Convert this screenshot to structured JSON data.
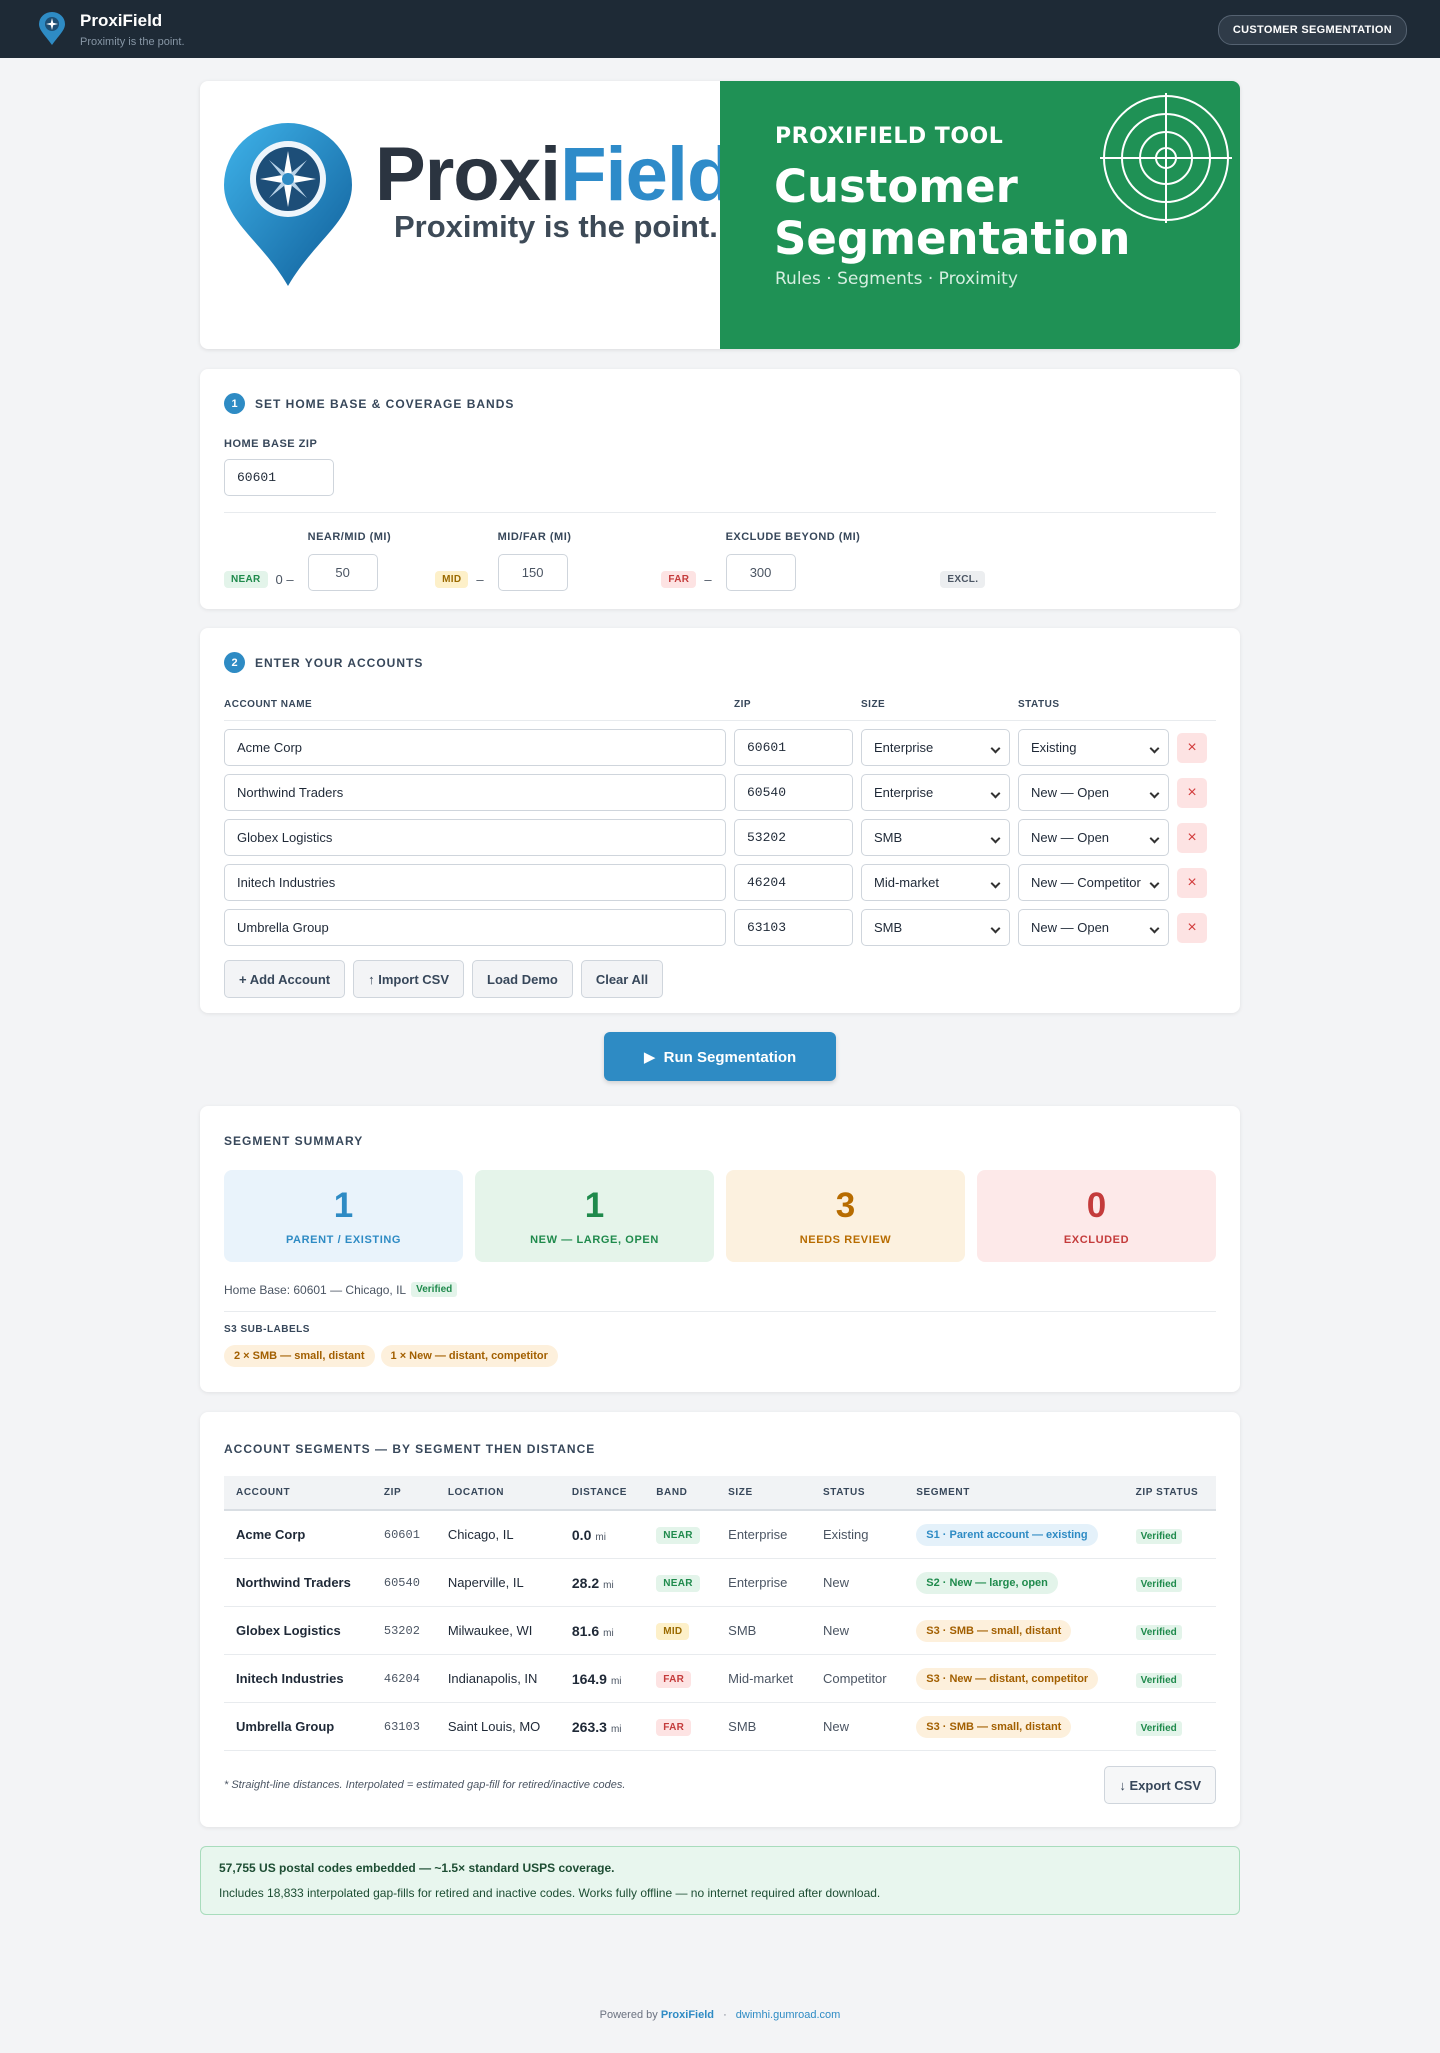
{
  "nav": {
    "brand": "ProxiField",
    "tagline": "Proximity is the point.",
    "button": "CUSTOMER SEGMENTATION"
  },
  "hero": {
    "logo_prefix": "Proxi",
    "logo_suffix": "Field",
    "logo_tagline": "Proximity is the point.",
    "eyebrow": "PROXIFIELD TOOL",
    "title_line1": "Customer",
    "title_line2": "Segmentation",
    "subtitle": "Rules · Segments · Proximity"
  },
  "step1": {
    "number": "1",
    "title": "SET HOME BASE & COVERAGE BANDS",
    "home_zip_label": "HOME BASE ZIP",
    "home_zip": "60601",
    "near_tag": "NEAR",
    "near_range": "0 –",
    "near_mid_label": "NEAR/MID (MI)",
    "near_mid": "50",
    "mid_tag": "MID",
    "mid_dash": "–",
    "mid_far_label": "MID/FAR (MI)",
    "mid_far": "150",
    "far_tag": "FAR",
    "far_dash": "–",
    "exclude_label": "EXCLUDE BEYOND (MI)",
    "exclude": "300",
    "excl_tag": "EXCL."
  },
  "step2": {
    "number": "2",
    "title": "ENTER YOUR ACCOUNTS",
    "columns": [
      "ACCOUNT NAME",
      "ZIP",
      "SIZE",
      "STATUS"
    ],
    "rows": [
      [
        "Acme Corp",
        "60601",
        "Enterprise",
        "Existing"
      ],
      [
        "Northwind Traders",
        "60540",
        "Enterprise",
        "New — Open"
      ],
      [
        "Globex Logistics",
        "53202",
        "SMB",
        "New — Open"
      ],
      [
        "Initech Industries",
        "46204",
        "Mid-market",
        "New — Competitor"
      ],
      [
        "Umbrella Group",
        "63103",
        "SMB",
        "New — Open"
      ]
    ],
    "remove": "×",
    "buttons": [
      "+ Add Account",
      "↑ Import CSV",
      "Load Demo",
      "Clear All"
    ]
  },
  "run_button": "▶  Run Segmentation",
  "summary": {
    "title": "SEGMENT SUMMARY",
    "cards": [
      {
        "value": "1",
        "label": "PARENT / EXISTING"
      },
      {
        "value": "1",
        "label": "NEW — LARGE, OPEN"
      },
      {
        "value": "3",
        "label": "NEEDS REVIEW"
      },
      {
        "value": "0",
        "label": "EXCLUDED"
      }
    ],
    "home_base": "Home Base: 60601 — Chicago, IL",
    "verified": "Verified",
    "sublabels_title": "S3 SUB-LABELS",
    "sublabels": [
      "2 × SMB — small, distant",
      "1 × New — distant, competitor"
    ]
  },
  "segments": {
    "title": "ACCOUNT SEGMENTS — BY SEGMENT THEN DISTANCE",
    "columns": [
      "ACCOUNT",
      "ZIP",
      "LOCATION",
      "DISTANCE",
      "BAND",
      "SIZE",
      "STATUS",
      "SEGMENT",
      "ZIP STATUS"
    ],
    "rows": [
      {
        "account": "Acme Corp",
        "zip": "60601",
        "location": "Chicago, IL",
        "distance": "0.0",
        "unit": "mi",
        "band": "NEAR",
        "size": "Enterprise",
        "status": "Existing",
        "segment": "S1 · Parent account — existing",
        "zip_status": "Verified"
      },
      {
        "account": "Northwind Traders",
        "zip": "60540",
        "location": "Naperville, IL",
        "distance": "28.2",
        "unit": "mi",
        "band": "NEAR",
        "size": "Enterprise",
        "status": "New",
        "segment": "S2 · New — large, open",
        "zip_status": "Verified"
      },
      {
        "account": "Globex Logistics",
        "zip": "53202",
        "location": "Milwaukee, WI",
        "distance": "81.6",
        "unit": "mi",
        "band": "MID",
        "size": "SMB",
        "status": "New",
        "segment": "S3 · SMB — small, distant",
        "zip_status": "Verified"
      },
      {
        "account": "Initech Industries",
        "zip": "46204",
        "location": "Indianapolis, IN",
        "distance": "164.9",
        "unit": "mi",
        "band": "FAR",
        "size": "Mid-market",
        "status": "Competitor",
        "segment": "S3 · New — distant, competitor",
        "zip_status": "Verified"
      },
      {
        "account": "Umbrella Group",
        "zip": "63103",
        "location": "Saint Louis, MO",
        "distance": "263.3",
        "unit": "mi",
        "band": "FAR",
        "size": "SMB",
        "status": "New",
        "segment": "S3 · SMB — small, distant",
        "zip_status": "Verified"
      }
    ],
    "footnote": "* Straight-line distances. Interpolated = estimated gap-fill for retired/inactive codes.",
    "export": "↓ Export CSV"
  },
  "notice": {
    "title": "57,755 US postal codes embedded — ~1.5× standard USPS coverage.",
    "text": "Includes 18,833 interpolated gap-fills for retired and inactive codes. Works fully offline — no internet required after download."
  },
  "footer": {
    "powered": "Powered by",
    "brand": "ProxiField",
    "separator": "·",
    "link": "dwimhi.gumroad.com"
  }
}
